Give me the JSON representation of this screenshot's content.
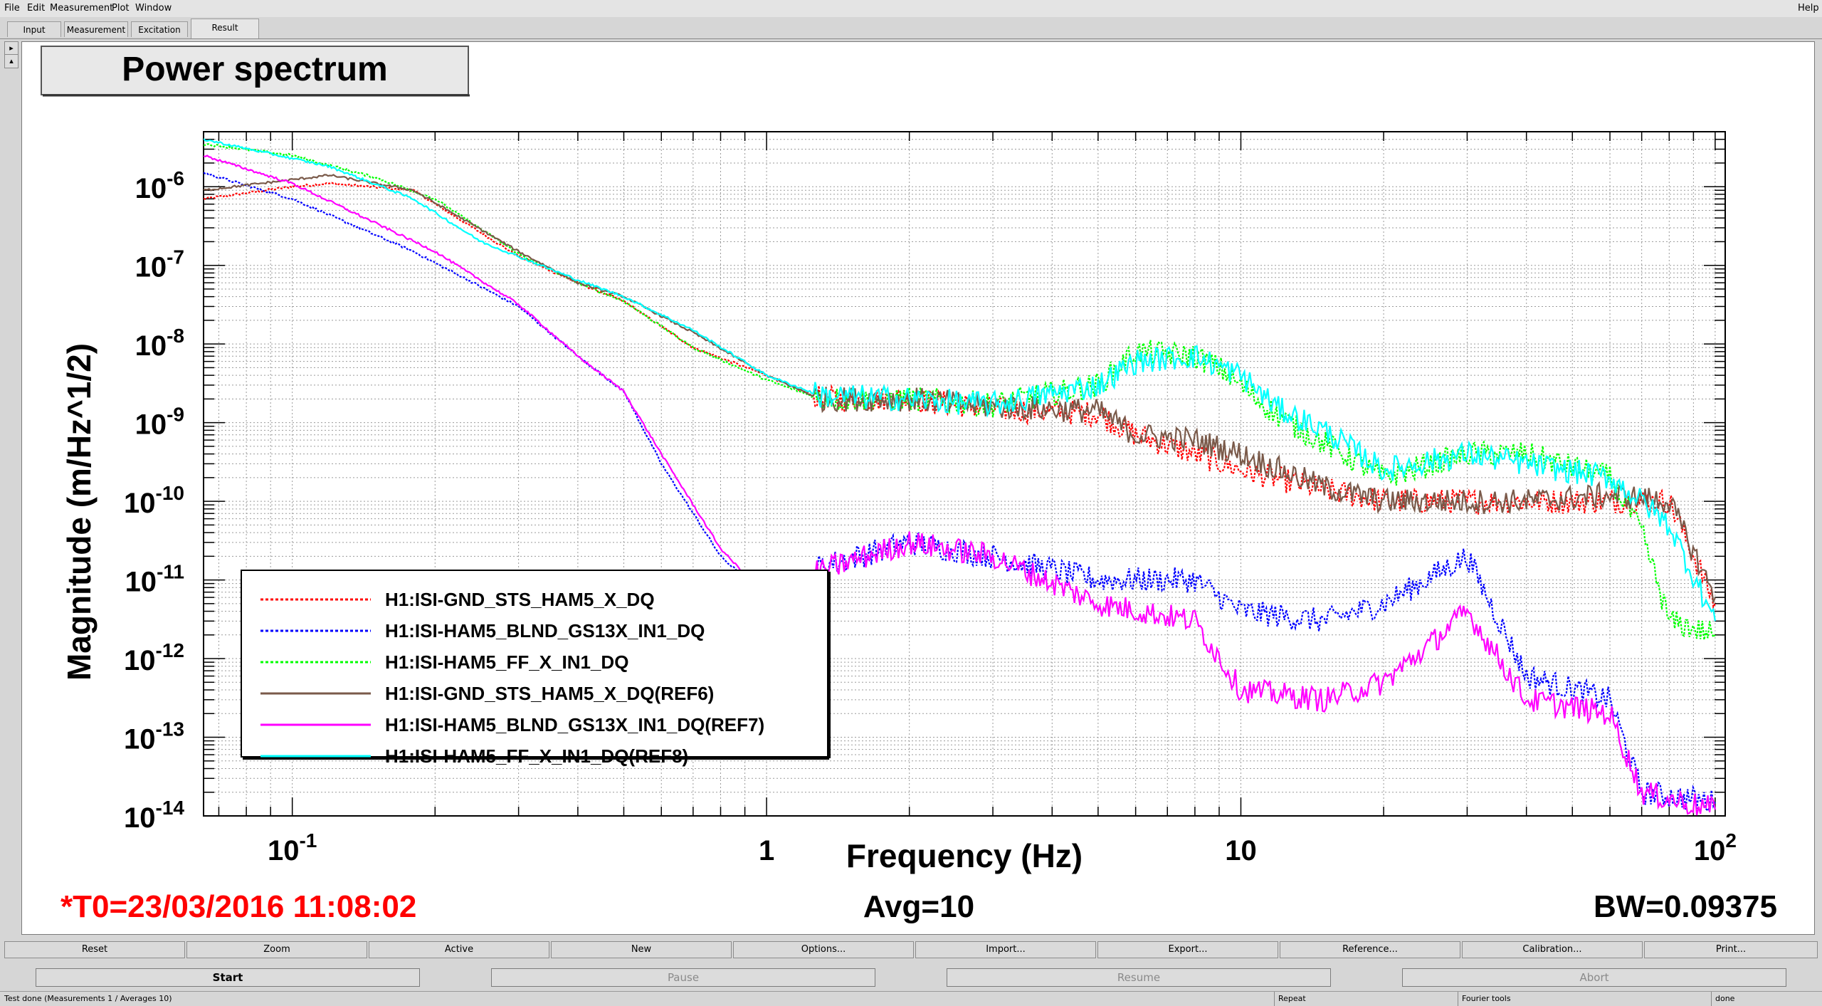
{
  "menu": {
    "file": "File",
    "edit": "Edit",
    "measurement": "Measurement",
    "plot": "Plot",
    "window": "Window",
    "help": "Help"
  },
  "tabs": [
    "Input",
    "Measurement",
    "Excitation",
    "Result"
  ],
  "active_tab": "Result",
  "plot": {
    "title": "Power spectrum",
    "t0": "*T0=23/03/2016 11:08:02",
    "avg": "Avg=10",
    "bw": "BW=0.09375",
    "colors": {
      "background": "#ffffff",
      "t0_text": "#ff0000"
    }
  },
  "chart_data": {
    "type": "line",
    "title": "Power spectrum",
    "xlabel": "Frequency (Hz)",
    "ylabel": "Magnitude (m/Hz^1/2)",
    "xscale": "log",
    "yscale": "log",
    "xlim": [
      0.065,
      105
    ],
    "ylim": [
      1e-14,
      5e-06
    ],
    "grid": true,
    "legend_position": "bottom-left",
    "x_ticks": [
      {
        "value": 0.1,
        "base": "10",
        "exp": "-1"
      },
      {
        "value": 1,
        "base": "1",
        "exp": ""
      },
      {
        "value": 10,
        "base": "10",
        "exp": ""
      },
      {
        "value": 100,
        "base": "10",
        "exp": "2"
      }
    ],
    "y_ticks": [
      {
        "value": 1e-06,
        "base": "10",
        "exp": "-6"
      },
      {
        "value": 1e-07,
        "base": "10",
        "exp": "-7"
      },
      {
        "value": 1e-08,
        "base": "10",
        "exp": "-8"
      },
      {
        "value": 1e-09,
        "base": "10",
        "exp": "-9"
      },
      {
        "value": 1e-10,
        "base": "10",
        "exp": "-10"
      },
      {
        "value": 1e-11,
        "base": "10",
        "exp": "-11"
      },
      {
        "value": 1e-12,
        "base": "10",
        "exp": "-12"
      },
      {
        "value": 1e-13,
        "base": "10",
        "exp": "-13"
      },
      {
        "value": 1e-14,
        "base": "10",
        "exp": "-14"
      }
    ],
    "series": [
      {
        "name": "H1:ISI-GND_STS_HAM5_X_DQ",
        "color": "#ff0000",
        "dash": "dotted",
        "x": [
          0.065,
          0.1,
          0.12,
          0.18,
          0.3,
          0.4,
          0.5,
          0.7,
          1,
          1.3,
          2,
          3,
          5,
          6,
          8,
          10,
          15,
          20,
          30,
          40,
          60,
          80,
          100
        ],
        "y": [
          7e-07,
          1e-06,
          1.1e-06,
          9e-07,
          1.3e-07,
          6e-08,
          3.5e-08,
          9e-09,
          4e-09,
          2e-09,
          2e-09,
          1.5e-09,
          1.3e-09,
          7e-10,
          4e-10,
          2.5e-10,
          1.4e-10,
          1e-10,
          1e-10,
          1e-10,
          1e-10,
          1e-10,
          5e-12
        ]
      },
      {
        "name": "H1:ISI-HAM5_BLND_GS13X_IN1_DQ",
        "color": "#0000ff",
        "dash": "dotted",
        "x": [
          0.065,
          0.1,
          0.18,
          0.3,
          0.4,
          0.5,
          0.6,
          0.8,
          1,
          1.3,
          2,
          3,
          5,
          8,
          10,
          15,
          20,
          30,
          40,
          60,
          70,
          100
        ],
        "y": [
          1.5e-06,
          7e-07,
          1.5e-07,
          3e-08,
          7e-09,
          2.5e-09,
          3e-10,
          2e-11,
          6e-12,
          1.5e-11,
          3e-11,
          2e-11,
          1e-11,
          1e-11,
          4e-12,
          3e-12,
          5e-12,
          2e-11,
          6e-13,
          3e-13,
          2e-14,
          1.5e-14
        ]
      },
      {
        "name": "H1:ISI-HAM5_FF_X_IN1_DQ",
        "color": "#00ff00",
        "dash": "dotted",
        "x": [
          0.065,
          0.1,
          0.15,
          0.2,
          0.3,
          0.4,
          0.5,
          0.7,
          1,
          1.3,
          2,
          3,
          5,
          6,
          8,
          9,
          12,
          20,
          30,
          40,
          60,
          70,
          80,
          100
        ],
        "y": [
          3.5e-06,
          2.5e-06,
          1.3e-06,
          7e-07,
          1.4e-07,
          6e-08,
          3.5e-08,
          9e-09,
          3.5e-09,
          2e-09,
          2e-09,
          1.7e-09,
          3e-09,
          8e-09,
          7e-09,
          5e-09,
          1.2e-09,
          2e-10,
          4e-10,
          4e-10,
          2e-10,
          4e-11,
          3e-12,
          2e-12
        ]
      },
      {
        "name": "H1:ISI-GND_STS_HAM5_X_DQ(REF6)",
        "color": "#7a5a4a",
        "dash": "solid",
        "x": [
          0.065,
          0.12,
          0.18,
          0.3,
          0.4,
          0.5,
          0.7,
          1,
          1.3,
          2,
          3,
          5,
          6,
          8,
          10,
          15,
          20,
          30,
          40,
          60,
          80,
          100
        ],
        "y": [
          9e-07,
          1.4e-06,
          9e-07,
          1.5e-07,
          6e-08,
          4e-08,
          1.4e-08,
          4e-09,
          2e-09,
          2e-09,
          1.6e-09,
          1.4e-09,
          7e-10,
          6e-10,
          4e-10,
          1.5e-10,
          1e-10,
          1e-10,
          1e-10,
          1.2e-10,
          1e-10,
          6e-12
        ]
      },
      {
        "name": "H1:ISI-HAM5_BLND_GS13X_IN1_DQ(REF7)",
        "color": "#ff00ff",
        "dash": "solid",
        "x": [
          0.065,
          0.1,
          0.2,
          0.3,
          0.4,
          0.5,
          0.6,
          0.8,
          1,
          1.3,
          2,
          3,
          5,
          8,
          10,
          15,
          20,
          25,
          30,
          40,
          60,
          70,
          100
        ],
        "y": [
          2.5e-06,
          1.1e-06,
          1.5e-07,
          3.2e-08,
          7e-09,
          2.5e-09,
          4e-10,
          2.5e-11,
          6e-12,
          1.3e-11,
          3e-11,
          2e-11,
          5e-12,
          3e-12,
          4e-13,
          3e-13,
          5e-13,
          1.5e-12,
          4e-12,
          3e-13,
          2e-13,
          2e-14,
          1.2e-14
        ]
      },
      {
        "name": "H1:ISI-HAM5_FF_X_IN1_DQ(REF8)",
        "color": "#00ffff",
        "dash": "solid",
        "x": [
          0.065,
          0.12,
          0.18,
          0.25,
          0.4,
          0.5,
          0.7,
          1,
          1.3,
          2,
          3,
          5,
          6,
          8,
          10,
          12,
          15,
          20,
          30,
          40,
          60,
          70,
          80,
          100
        ],
        "y": [
          4e-06,
          1.8e-06,
          7e-07,
          2e-07,
          6.5e-08,
          4e-08,
          1.5e-08,
          4e-09,
          2.2e-09,
          2e-09,
          1.7e-09,
          3e-09,
          6e-09,
          7e-09,
          4e-09,
          1.5e-09,
          8e-10,
          2.5e-10,
          4e-10,
          3e-10,
          2e-10,
          1e-10,
          5e-11,
          3e-12
        ]
      }
    ]
  },
  "buttons_row1": [
    "Reset",
    "Zoom",
    "Active",
    "New",
    "Options...",
    "Import...",
    "Export...",
    "Reference...",
    "Calibration...",
    "Print..."
  ],
  "buttons_row2": [
    "Start",
    "Pause",
    "Resume",
    "Abort"
  ],
  "status": {
    "main": "Test done (Measurements 1 / Averages 10)",
    "repeat": "Repeat",
    "fourier": "Fourier tools",
    "state": "done"
  }
}
